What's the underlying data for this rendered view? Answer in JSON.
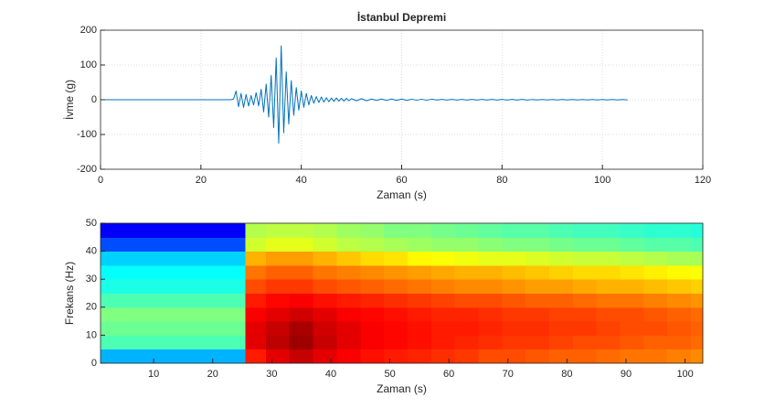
{
  "chart_data": [
    {
      "type": "line",
      "title": "İstanbul Depremi",
      "xlabel": "Zaman (s)",
      "ylabel": "İvme (g)",
      "xlim": [
        0,
        120
      ],
      "ylim": [
        -200,
        200
      ],
      "xticks": [
        0,
        20,
        40,
        60,
        80,
        100,
        120
      ],
      "yticks": [
        -200,
        -100,
        0,
        100,
        200
      ],
      "grid": true,
      "x": [
        0,
        5,
        10,
        15,
        20,
        25,
        26,
        26.5,
        27,
        27.5,
        28,
        28.5,
        29,
        29.5,
        30,
        30.5,
        31,
        31.5,
        32,
        32.5,
        33,
        33.5,
        34,
        34.5,
        35,
        35.5,
        36,
        36.5,
        37,
        37.5,
        38,
        38.5,
        39,
        39.5,
        40,
        40.5,
        41,
        41.5,
        42,
        42.5,
        43,
        43.5,
        44,
        44.5,
        45,
        45.5,
        46,
        46.5,
        47,
        47.5,
        48,
        48.5,
        49,
        49.5,
        50,
        51,
        52,
        53,
        54,
        55,
        56,
        57,
        58,
        59,
        60,
        61,
        62,
        63,
        64,
        65,
        66,
        67,
        68,
        69,
        70,
        71,
        72,
        73,
        74,
        75,
        76,
        77,
        78,
        79,
        80,
        81,
        82,
        83,
        84,
        85,
        86,
        87,
        88,
        89,
        90,
        91,
        92,
        93,
        94,
        95,
        96,
        97,
        98,
        99,
        100,
        101,
        102,
        103,
        104,
        105
      ],
      "series": [
        {
          "color": "#0072bd",
          "values": [
            0,
            0,
            0,
            0,
            0,
            0,
            0,
            2,
            25,
            -20,
            18,
            -22,
            15,
            -18,
            12,
            -15,
            20,
            -18,
            30,
            -35,
            45,
            -50,
            70,
            -80,
            120,
            -125,
            155,
            -95,
            80,
            -70,
            55,
            -45,
            35,
            -30,
            25,
            -22,
            18,
            -15,
            12,
            -10,
            9,
            -8,
            8,
            -7,
            6,
            -6,
            5,
            -5,
            5,
            -4,
            4,
            -4,
            4,
            -3,
            3,
            -3,
            3,
            -3,
            2,
            -2,
            2,
            -2,
            2,
            -2,
            2,
            -2,
            1.5,
            -1.5,
            1.5,
            -1.5,
            1.5,
            -1,
            1,
            -1,
            1,
            -1,
            1,
            -1,
            1,
            -1,
            1,
            -1,
            1,
            -1,
            1,
            -1,
            1,
            -1,
            1,
            -1,
            0.5,
            -0.5,
            0.5,
            -0.5,
            0.5,
            -0.5,
            0.5,
            -0.5,
            0.5,
            -0.5,
            0.5,
            -0.5,
            0.5,
            -0.5,
            0.5,
            -0.5,
            0.5,
            -0.5,
            0.5,
            -0.5
          ]
        }
      ]
    },
    {
      "type": "heatmap",
      "xlabel": "Zaman (s)",
      "ylabel": "Frekans (Hz)",
      "xlim": [
        1,
        103
      ],
      "ylim": [
        0,
        50
      ],
      "xticks": [
        10,
        20,
        30,
        40,
        50,
        60,
        70,
        80,
        90,
        100
      ],
      "yticks": [
        0,
        10,
        20,
        30,
        40,
        50
      ],
      "colormap": "jet",
      "zlim": [
        0,
        1
      ],
      "x_edges": [
        1,
        5,
        9,
        13,
        17,
        21,
        25.5,
        29,
        33,
        37,
        41,
        45,
        49,
        53,
        57,
        61,
        65,
        69,
        73,
        77,
        81,
        85,
        89,
        93,
        97,
        101,
        103
      ],
      "y_edges": [
        0,
        5,
        10,
        15,
        20,
        25,
        30,
        35,
        40,
        45,
        50
      ],
      "z": [
        [
          0.3,
          0.3,
          0.3,
          0.3,
          0.3,
          0.3,
          0.85,
          0.9,
          0.93,
          0.9,
          0.88,
          0.86,
          0.85,
          0.84,
          0.83,
          0.82,
          0.8,
          0.8,
          0.79,
          0.78,
          0.78,
          0.77,
          0.76,
          0.76,
          0.75,
          0.74
        ],
        [
          0.45,
          0.45,
          0.45,
          0.45,
          0.45,
          0.45,
          0.9,
          0.94,
          0.97,
          0.93,
          0.9,
          0.88,
          0.87,
          0.86,
          0.85,
          0.84,
          0.83,
          0.82,
          0.82,
          0.81,
          0.8,
          0.8,
          0.79,
          0.78,
          0.78,
          0.77
        ],
        [
          0.48,
          0.48,
          0.48,
          0.48,
          0.48,
          0.48,
          0.9,
          0.93,
          0.96,
          0.92,
          0.9,
          0.88,
          0.87,
          0.86,
          0.85,
          0.85,
          0.84,
          0.83,
          0.83,
          0.82,
          0.82,
          0.81,
          0.8,
          0.8,
          0.79,
          0.78
        ],
        [
          0.5,
          0.5,
          0.5,
          0.5,
          0.5,
          0.5,
          0.88,
          0.9,
          0.92,
          0.9,
          0.88,
          0.87,
          0.86,
          0.85,
          0.84,
          0.84,
          0.83,
          0.82,
          0.82,
          0.81,
          0.81,
          0.8,
          0.8,
          0.79,
          0.78,
          0.77
        ],
        [
          0.45,
          0.45,
          0.45,
          0.45,
          0.45,
          0.45,
          0.85,
          0.87,
          0.88,
          0.86,
          0.85,
          0.84,
          0.83,
          0.82,
          0.81,
          0.8,
          0.8,
          0.79,
          0.78,
          0.78,
          0.77,
          0.76,
          0.76,
          0.75,
          0.74,
          0.73
        ],
        [
          0.4,
          0.4,
          0.4,
          0.4,
          0.4,
          0.4,
          0.8,
          0.82,
          0.82,
          0.8,
          0.79,
          0.78,
          0.77,
          0.76,
          0.75,
          0.74,
          0.74,
          0.73,
          0.72,
          0.72,
          0.71,
          0.7,
          0.7,
          0.69,
          0.68,
          0.67
        ],
        [
          0.38,
          0.38,
          0.38,
          0.38,
          0.38,
          0.38,
          0.76,
          0.78,
          0.78,
          0.76,
          0.75,
          0.74,
          0.73,
          0.72,
          0.71,
          0.7,
          0.7,
          0.69,
          0.68,
          0.67,
          0.66,
          0.66,
          0.65,
          0.64,
          0.63,
          0.62
        ],
        [
          0.33,
          0.33,
          0.33,
          0.33,
          0.33,
          0.33,
          0.7,
          0.72,
          0.72,
          0.7,
          0.68,
          0.66,
          0.65,
          0.63,
          0.62,
          0.61,
          0.6,
          0.6,
          0.59,
          0.58,
          0.57,
          0.57,
          0.56,
          0.55,
          0.54,
          0.54
        ],
        [
          0.2,
          0.2,
          0.2,
          0.2,
          0.2,
          0.2,
          0.58,
          0.6,
          0.6,
          0.58,
          0.56,
          0.55,
          0.54,
          0.53,
          0.52,
          0.52,
          0.51,
          0.5,
          0.5,
          0.49,
          0.48,
          0.48,
          0.47,
          0.46,
          0.46,
          0.45
        ],
        [
          0.12,
          0.12,
          0.12,
          0.12,
          0.12,
          0.12,
          0.55,
          0.56,
          0.56,
          0.55,
          0.53,
          0.52,
          0.5,
          0.5,
          0.49,
          0.48,
          0.47,
          0.46,
          0.46,
          0.45,
          0.44,
          0.44,
          0.43,
          0.42,
          0.42,
          0.41
        ]
      ]
    }
  ]
}
